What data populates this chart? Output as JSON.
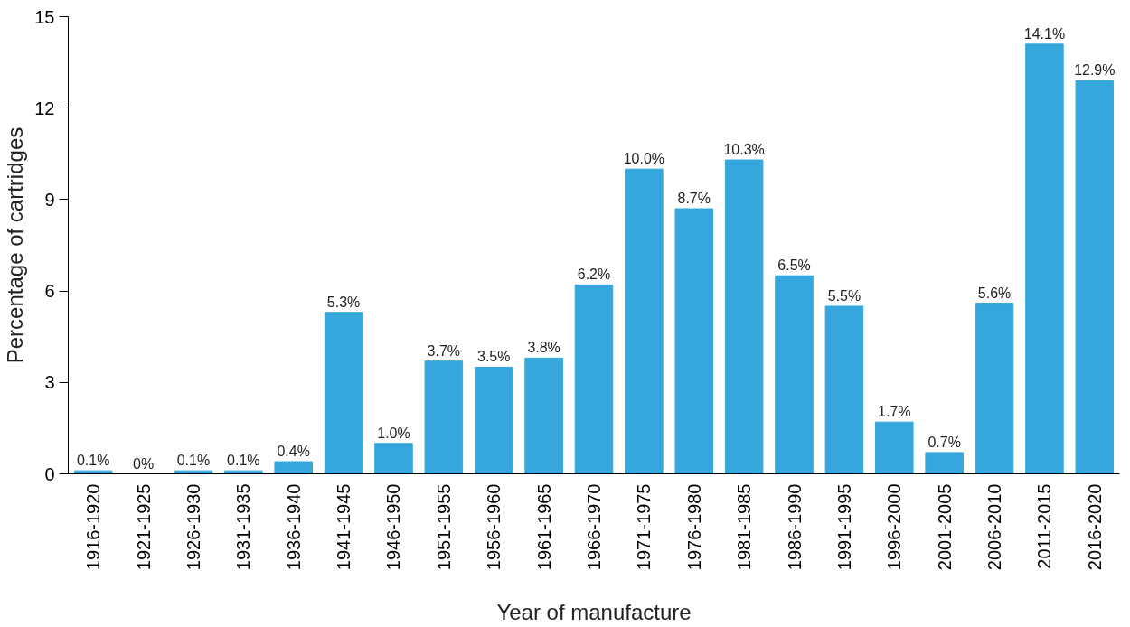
{
  "chart_data": {
    "type": "bar",
    "xlabel": "Year of manufacture",
    "ylabel": "Percentage of cartridges",
    "categories": [
      "1916-1920",
      "1921-1925",
      "1926-1930",
      "1931-1935",
      "1936-1940",
      "1941-1945",
      "1946-1950",
      "1951-1955",
      "1956-1960",
      "1961-1965",
      "1966-1970",
      "1971-1975",
      "1976-1980",
      "1981-1985",
      "1986-1990",
      "1991-1995",
      "1996-2000",
      "2001-2005",
      "2006-2010",
      "2011-2015",
      "2016-2020"
    ],
    "values": [
      0.1,
      0,
      0.1,
      0.1,
      0.4,
      5.3,
      1.0,
      3.7,
      3.5,
      3.8,
      6.2,
      10.0,
      8.7,
      10.3,
      6.5,
      5.5,
      1.7,
      0.7,
      5.6,
      14.1,
      12.9
    ],
    "value_labels": [
      "0.1%",
      "0%",
      "0.1%",
      "0.1%",
      "0.4%",
      "5.3%",
      "1.0%",
      "3.7%",
      "3.5%",
      "3.8%",
      "6.2%",
      "10.0%",
      "8.7%",
      "10.3%",
      "6.5%",
      "5.5%",
      "1.7%",
      "0.7%",
      "5.6%",
      "14.1%",
      "12.9%"
    ],
    "color": "#35a7dc",
    "ylim": [
      0,
      15
    ],
    "yticks": [
      0,
      3,
      6,
      9,
      12,
      15
    ],
    "grid": false
  }
}
